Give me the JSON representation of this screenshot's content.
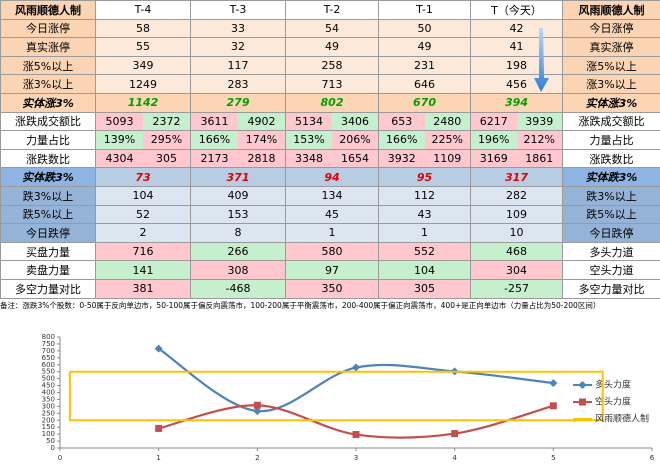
{
  "table": {
    "rows": [
      [
        "风雨顺德人制",
        "T-4",
        "T-3",
        "T-2",
        "T-1",
        "T（今天）",
        "风雨顺德人制"
      ],
      [
        "今日涨停",
        58,
        33,
        54,
        50,
        42,
        "今日涨停"
      ],
      [
        "真实涨停",
        55,
        32,
        49,
        49,
        41,
        "真实涨停"
      ],
      [
        "涨5%以上",
        349,
        117,
        258,
        231,
        198,
        "涨5%以上"
      ],
      [
        "涨3%以上",
        1249,
        283,
        713,
        646,
        456,
        "涨3%以上"
      ],
      [
        "实体涨3%",
        1142,
        279,
        802,
        670,
        394,
        "实体涨3%"
      ],
      [
        "涨跌成交额比",
        [
          5093,
          2372
        ],
        [
          3611,
          4902
        ],
        [
          5134,
          3406
        ],
        [
          653,
          2480
        ],
        [
          6217,
          3939
        ],
        "涨跌成交额比"
      ],
      [
        "力量占比",
        [
          "139%",
          "295%"
        ],
        [
          "166%",
          "174%"
        ],
        [
          "153%",
          "206%"
        ],
        [
          "166%",
          "225%"
        ],
        [
          "196%",
          "212%"
        ],
        "力量占比"
      ],
      [
        "涨跌数比",
        [
          4304,
          305
        ],
        [
          2173,
          2818
        ],
        [
          3348,
          1654
        ],
        [
          3932,
          1109
        ],
        [
          3169,
          1861
        ],
        "涨跌数比"
      ],
      [
        "实体跌3%",
        73,
        371,
        94,
        95,
        317,
        "实体跌3%"
      ],
      [
        "跌3%以上",
        104,
        409,
        134,
        112,
        282,
        "跌3%以上"
      ],
      [
        "跌5%以上",
        52,
        153,
        45,
        43,
        109,
        "跌5%以上"
      ],
      [
        "今日跌停",
        2,
        8,
        1,
        1,
        10,
        "今日跌停"
      ],
      [
        "买盘力量",
        716,
        266,
        580,
        552,
        468,
        "多头力道"
      ],
      [
        "卖盘力量",
        141,
        308,
        97,
        104,
        304,
        "空头力道"
      ],
      [
        "多空力量对比",
        381,
        -468,
        350,
        305,
        -257,
        "多空力量对比"
      ]
    ],
    "note": "备注：涨跌3%个股数：0-50属于反向单边市，50-100属于偏反向震荡市，100-200属于平衡震荡市，200-400属于偏正向震荡市，400+是正向单边市（力量占比为50-200区间）"
  },
  "chart_data": {
    "type": "line",
    "xlim": [
      0,
      6
    ],
    "xticks": [
      0,
      1,
      2,
      3,
      4,
      5,
      6
    ],
    "ylim": [
      0,
      800
    ],
    "yticks": [
      0,
      50,
      100,
      150,
      200,
      250,
      300,
      350,
      400,
      450,
      500,
      550,
      600,
      650,
      700,
      750,
      800
    ],
    "series": [
      {
        "name": "多头力度",
        "color": "#4f81bd",
        "marker": "diamond",
        "smooth": true,
        "x": [
          1,
          2,
          3,
          4,
          5
        ],
        "values": [
          716,
          266,
          580,
          552,
          468
        ]
      },
      {
        "name": "空头力度",
        "color": "#c0504d",
        "marker": "square",
        "smooth": true,
        "x": [
          1,
          2,
          3,
          4,
          5
        ],
        "values": [
          141,
          308,
          97,
          104,
          304
        ]
      },
      {
        "name": "风雨顺德人制",
        "color": "#ffc000",
        "x": [
          0.1,
          5.5,
          5.5,
          0.1,
          0.1
        ],
        "values": [
          550,
          550,
          200,
          200,
          550
        ]
      }
    ]
  }
}
